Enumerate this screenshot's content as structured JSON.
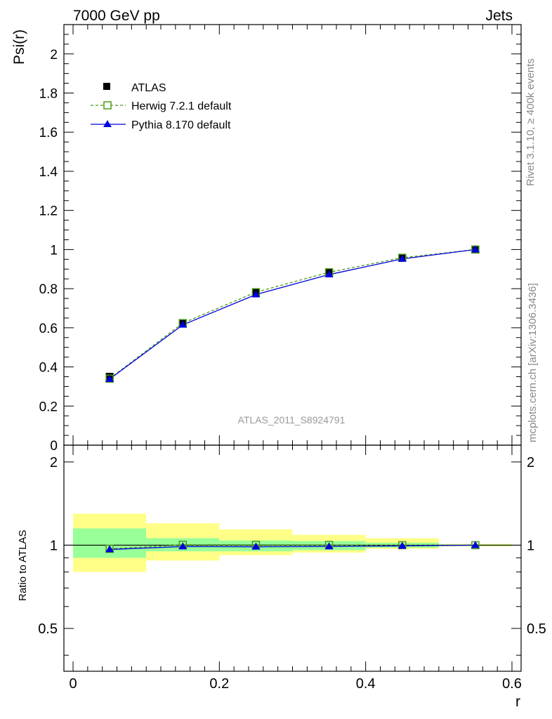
{
  "header": {
    "left_title": "7000 GeV pp",
    "right_title": "Jets"
  },
  "side_labels": {
    "rivet": "Rivet 3.1.10, ≥ 400k events",
    "mcplots": "mcplots.cern.ch [arXiv:1306.3436]"
  },
  "watermark": "ATLAS_2011_S8924791",
  "colors": {
    "atlas": "#000000",
    "herwig": "#4a9a1a",
    "pythia": "#0000dd",
    "band_inner": "#99ff99",
    "band_outer": "#ffff88"
  },
  "chart_data": [
    {
      "panel": "main",
      "type": "line",
      "ylabel": "Psi(r)",
      "xlim": [
        -0.0125,
        0.6125
      ],
      "ylim": [
        0,
        2.15
      ],
      "y_ticks": [
        "0",
        "0.2",
        "0.4",
        "0.6",
        "0.8",
        "1",
        "1.2",
        "1.4",
        "1.6",
        "1.8",
        "2"
      ],
      "x": [
        0.05,
        0.15,
        0.25,
        0.35,
        0.45,
        0.55
      ],
      "legend_position": "top-left",
      "series": [
        {
          "name": "ATLAS",
          "marker": "filled-square",
          "values": [
            0.35,
            0.622,
            0.78,
            0.882,
            0.958,
            1.0
          ]
        },
        {
          "name": "Herwig 7.2.1 default",
          "marker": "open-square",
          "line": "dashed",
          "values": [
            0.34,
            0.624,
            0.782,
            0.884,
            0.958,
            1.0
          ]
        },
        {
          "name": "Pythia 8.170 default",
          "marker": "filled-triangle",
          "line": "solid",
          "values": [
            0.338,
            0.615,
            0.77,
            0.872,
            0.952,
            1.0
          ]
        }
      ]
    },
    {
      "panel": "ratio",
      "type": "line",
      "ylabel": "Ratio to ATLAS",
      "xlabel": "r",
      "xlim": [
        -0.0125,
        0.6125
      ],
      "ylim": [
        0.35,
        2.3
      ],
      "y_ticks": [
        "0.5",
        "1",
        "2"
      ],
      "x_ticks": [
        "0",
        "0.2",
        "0.4",
        "0.6"
      ],
      "bins": [
        [
          0.0,
          0.1
        ],
        [
          0.1,
          0.2
        ],
        [
          0.2,
          0.3
        ],
        [
          0.3,
          0.4
        ],
        [
          0.4,
          0.5
        ],
        [
          0.5,
          0.6
        ]
      ],
      "band_inner": [
        [
          0.9,
          1.15
        ],
        [
          0.95,
          1.06
        ],
        [
          0.95,
          1.04
        ],
        [
          0.96,
          1.035
        ],
        [
          0.98,
          1.02
        ],
        [
          0.995,
          1.005
        ]
      ],
      "band_outer": [
        [
          0.8,
          1.3
        ],
        [
          0.88,
          1.2
        ],
        [
          0.92,
          1.14
        ],
        [
          0.94,
          1.09
        ],
        [
          0.97,
          1.06
        ],
        [
          0.99,
          1.01
        ]
      ],
      "x": [
        0.05,
        0.15,
        0.25,
        0.35,
        0.45,
        0.55
      ],
      "series": [
        {
          "name": "Herwig 7.2.1 default",
          "values": [
            0.97,
            1.003,
            1.003,
            1.002,
            1.0,
            1.0
          ]
        },
        {
          "name": "Pythia 8.170 default",
          "values": [
            0.965,
            0.989,
            0.987,
            0.989,
            0.994,
            1.0
          ]
        }
      ]
    }
  ]
}
